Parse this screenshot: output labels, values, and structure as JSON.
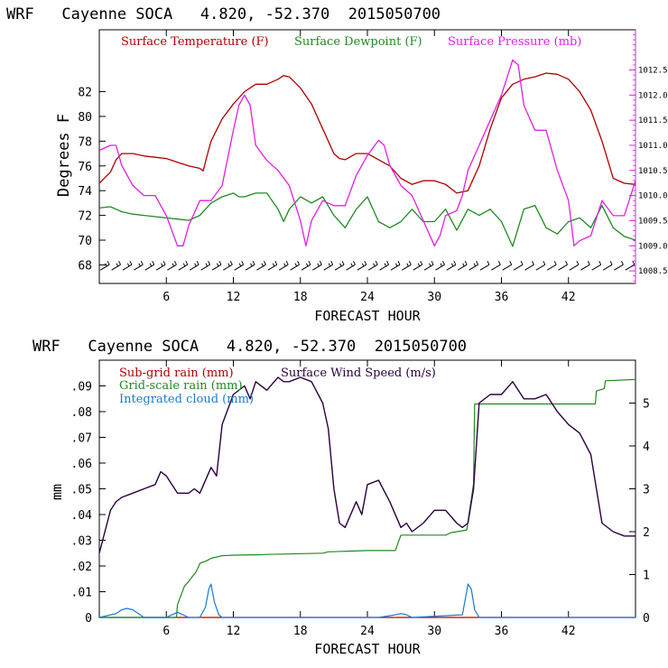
{
  "chart_data": [
    {
      "type": "line",
      "title": "WRF   Cayenne SOCA   4.820, -52.370  2015050700",
      "xlabel": "FORECAST HOUR",
      "ylabel": "Degrees F",
      "xlim": [
        0,
        48
      ],
      "ylim": [
        66.5,
        87
      ],
      "xticks": [
        "6",
        "12",
        "18",
        "24",
        "30",
        "36",
        "42"
      ],
      "yticks": [
        "68",
        "70",
        "72",
        "74",
        "76",
        "78",
        "80",
        "82"
      ],
      "y2lim": [
        1008.25,
        1013.3
      ],
      "y2ticks": [
        "1008.5",
        "1009.0",
        "1009.5",
        "1010.0",
        "1010.5",
        "1011.0",
        "1011.5",
        "1012.0",
        "1012.5"
      ],
      "colors": {
        "temperature": "#b00000",
        "dewpoint": "#1f8a1f",
        "pressure": "#e020e0",
        "axis_right": "#e020e0"
      },
      "series": [
        {
          "name": "Surface Temperature (F)",
          "x": [
            0,
            1,
            1.5,
            2,
            3,
            4,
            5,
            6,
            7,
            8,
            9,
            9.3,
            9.7,
            10,
            11,
            12,
            13,
            14,
            15,
            16,
            16.5,
            17,
            18,
            19,
            20,
            21,
            21.5,
            22,
            23,
            24,
            25,
            26,
            27,
            28,
            29,
            30,
            31,
            32,
            33,
            34,
            35,
            36,
            37,
            38,
            39,
            40,
            41,
            42,
            43,
            44,
            45,
            46,
            47,
            48
          ],
          "y": [
            74.6,
            75.5,
            76.5,
            77.0,
            77.0,
            76.8,
            76.7,
            76.6,
            76.3,
            76.0,
            75.8,
            75.6,
            77.0,
            78.0,
            79.8,
            81.0,
            82.0,
            82.6,
            82.6,
            83.0,
            83.3,
            83.2,
            82.3,
            81.0,
            79.0,
            77.0,
            76.6,
            76.5,
            77.0,
            77.0,
            76.5,
            76.0,
            75.0,
            74.5,
            74.8,
            74.8,
            74.5,
            73.8,
            74.0,
            76.0,
            79.0,
            81.5,
            82.6,
            83.0,
            83.2,
            83.5,
            83.4,
            83.0,
            82.0,
            80.5,
            78.0,
            75.0,
            74.6,
            74.5
          ]
        },
        {
          "name": "Surface Dewpoint (F)",
          "x": [
            0,
            1,
            2,
            3,
            4,
            5,
            6,
            7,
            8,
            9,
            10,
            11,
            12,
            12.5,
            13,
            14,
            15,
            16,
            16.5,
            17,
            18,
            19,
            20,
            21,
            22,
            23,
            24,
            25,
            26,
            27,
            28,
            29,
            30,
            31,
            32,
            33,
            34,
            35,
            36,
            37,
            38,
            39,
            40,
            41,
            42,
            43,
            44,
            45,
            46,
            47,
            48
          ],
          "y": [
            72.6,
            72.7,
            72.3,
            72.1,
            72.0,
            71.9,
            71.8,
            71.7,
            71.6,
            72.0,
            73.0,
            73.5,
            73.8,
            73.5,
            73.5,
            73.8,
            73.8,
            72.5,
            71.5,
            72.5,
            73.5,
            73.0,
            73.5,
            72.0,
            71.0,
            72.5,
            73.5,
            71.5,
            71.0,
            71.5,
            72.5,
            71.5,
            71.5,
            72.5,
            70.8,
            72.5,
            72.0,
            72.5,
            71.5,
            69.5,
            72.5,
            72.8,
            71.0,
            70.5,
            71.5,
            71.8,
            71.0,
            72.8,
            71.0,
            70.3,
            70.0
          ]
        },
        {
          "name": "Surface Pressure (mb)",
          "x": [
            0,
            1,
            1.5,
            2,
            3,
            4,
            5,
            6,
            7,
            7.5,
            8,
            9,
            10,
            11,
            12,
            12.5,
            13,
            13.5,
            14,
            15,
            16,
            17,
            18,
            18.5,
            19,
            20,
            21,
            22,
            23,
            24,
            25,
            25.5,
            26,
            27,
            28,
            29,
            30,
            30.5,
            31,
            32,
            32.5,
            33,
            34,
            35,
            36,
            37,
            37.5,
            38,
            39,
            40,
            41,
            42,
            42.5,
            43,
            44,
            45,
            46,
            47,
            48
          ],
          "y": [
            1010.9,
            1011.0,
            1011.0,
            1010.6,
            1010.2,
            1010.0,
            1010.0,
            1009.6,
            1009.0,
            1009.0,
            1009.4,
            1009.9,
            1009.9,
            1010.2,
            1011.3,
            1011.8,
            1012.0,
            1011.8,
            1011.0,
            1010.7,
            1010.5,
            1010.2,
            1009.5,
            1009.0,
            1009.5,
            1009.9,
            1009.8,
            1009.8,
            1010.4,
            1010.8,
            1011.1,
            1011.0,
            1010.6,
            1010.2,
            1010.0,
            1009.5,
            1009.0,
            1009.2,
            1009.6,
            1009.7,
            1010.0,
            1010.5,
            1011.0,
            1011.5,
            1012.0,
            1012.7,
            1012.6,
            1011.8,
            1011.3,
            1011.3,
            1010.5,
            1009.9,
            1009.0,
            1009.1,
            1009.2,
            1009.9,
            1009.6,
            1009.6,
            1010.3
          ]
        }
      ],
      "wind_barbs": "row of wind barbs along the bottom of the panel"
    },
    {
      "type": "line",
      "title": "WRF   Cayenne SOCA   4.820, -52.370  2015050700",
      "xlabel": "FORECAST HOUR",
      "ylabel": "mm",
      "xlim": [
        0,
        48
      ],
      "ylim": [
        0,
        0.1
      ],
      "xticks": [
        "6",
        "12",
        "18",
        "24",
        "30",
        "36",
        "42"
      ],
      "yticks": [
        "0",
        ".01",
        ".02",
        ".03",
        ".04",
        ".05",
        ".06",
        ".07",
        ".08",
        ".09"
      ],
      "y2lim": [
        0,
        6.0
      ],
      "y2ticks": [
        "0",
        "1",
        "2",
        "3",
        "4",
        "5"
      ],
      "colors": {
        "subgrid": "#b00000",
        "gridscale": "#1f8a1f",
        "cloud": "#1a7ad0",
        "wind": "#2a0040"
      },
      "series": [
        {
          "name": "Sub-grid rain (mm)",
          "x": [
            0,
            48
          ],
          "y": [
            0,
            0
          ]
        },
        {
          "name": "Grid-scale rain (mm)",
          "x": [
            0,
            6.9,
            7.0,
            7.6,
            8.0,
            8.7,
            9.0,
            9.6,
            10.0,
            11.0,
            12.0,
            14.5,
            15.0,
            20.0,
            20.5,
            24.0,
            26.5,
            27.0,
            31.0,
            31.5,
            32.9,
            33.5,
            33.6,
            35.0,
            44.4,
            44.5,
            45.2,
            45.3,
            48.0
          ],
          "y": [
            0,
            0,
            0.005,
            0.012,
            0.014,
            0.018,
            0.021,
            0.022,
            0.023,
            0.024,
            0.0242,
            0.0244,
            0.0245,
            0.025,
            0.0255,
            0.026,
            0.026,
            0.032,
            0.032,
            0.033,
            0.034,
            0.052,
            0.083,
            0.083,
            0.083,
            0.088,
            0.089,
            0.092,
            0.0925
          ]
        },
        {
          "name": "Integrated cloud (mm)",
          "x": [
            0,
            1.5,
            2,
            2.5,
            3,
            3.5,
            4,
            5,
            6,
            6.5,
            7,
            7.5,
            8,
            9,
            9.5,
            9.8,
            10,
            10.3,
            10.7,
            11,
            15,
            20,
            25,
            26.5,
            27,
            27.5,
            28,
            32.5,
            32.8,
            33,
            33.3,
            33.6,
            34,
            40,
            44,
            46,
            48
          ],
          "y": [
            0,
            0.0015,
            0.003,
            0.0035,
            0.003,
            0.0015,
            0,
            0,
            0,
            0.001,
            0.002,
            0.001,
            0,
            0,
            0.004,
            0.011,
            0.013,
            0.006,
            0.001,
            0,
            0,
            0,
            0,
            0.001,
            0.0015,
            0.001,
            0,
            0.001,
            0.008,
            0.013,
            0.011,
            0.003,
            0,
            0,
            0,
            0,
            0
          ]
        },
        {
          "name": "Surface Wind Speed (m/s)",
          "axis": "right",
          "x": [
            0,
            0.5,
            1,
            1.5,
            2,
            3,
            4,
            5,
            5.5,
            6,
            6.5,
            7,
            8,
            8.5,
            9,
            10,
            10.5,
            11,
            12,
            13,
            13.5,
            14,
            15,
            16,
            16.5,
            17,
            18,
            19,
            20,
            20.5,
            21,
            21.5,
            22,
            23,
            23.5,
            24,
            25,
            26,
            27,
            27.5,
            28,
            29,
            30,
            31,
            32,
            32.5,
            33,
            33.5,
            34,
            35,
            36,
            37,
            38,
            39,
            40,
            41,
            42,
            43,
            44,
            44.5,
            45,
            46,
            47,
            48
          ],
          "y": [
            1.5,
            2.0,
            2.5,
            2.7,
            2.8,
            2.9,
            3.0,
            3.1,
            3.4,
            3.3,
            3.1,
            2.9,
            2.9,
            3.0,
            2.9,
            3.5,
            3.3,
            4.5,
            5.2,
            5.4,
            5.1,
            5.5,
            5.3,
            5.6,
            5.5,
            5.5,
            5.6,
            5.5,
            5.0,
            4.4,
            3.0,
            2.2,
            2.1,
            2.7,
            2.4,
            3.1,
            3.2,
            2.7,
            2.1,
            2.2,
            2.0,
            2.2,
            2.5,
            2.5,
            2.2,
            2.1,
            2.2,
            3.0,
            5.0,
            5.2,
            5.2,
            5.5,
            5.1,
            5.1,
            5.2,
            4.8,
            4.5,
            4.3,
            3.8,
            3.0,
            2.2,
            2.0,
            1.9,
            1.9
          ]
        }
      ]
    }
  ]
}
